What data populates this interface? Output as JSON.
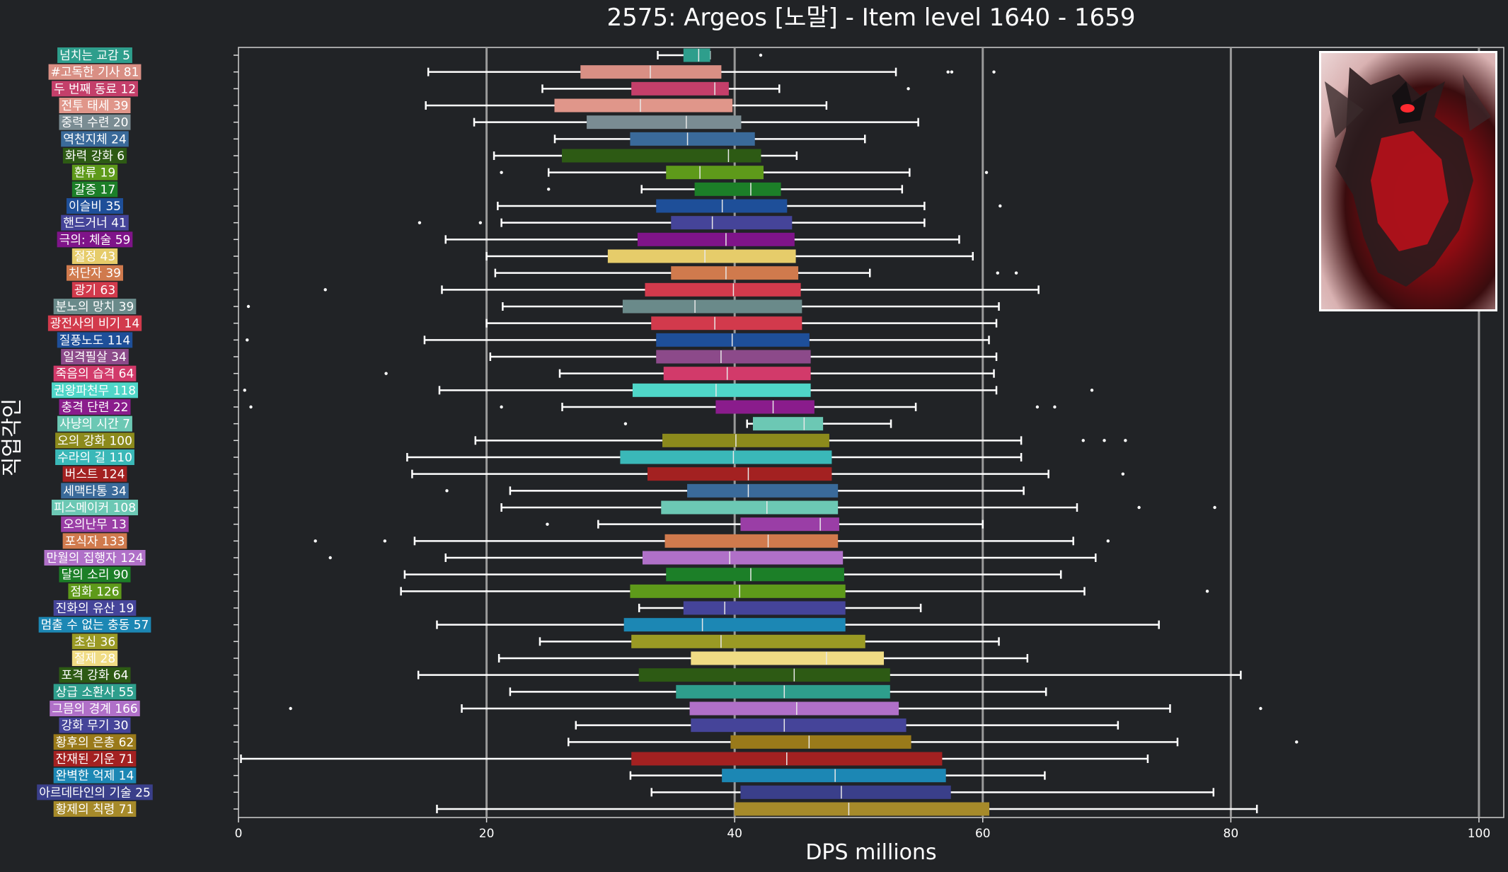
{
  "chart_data": {
    "type": "boxplot",
    "orientation": "horizontal",
    "title": "2575: Argeos [노말] - Item level 1640 - 1659",
    "xlabel": "DPS millions",
    "ylabel": "직업각인",
    "xlim": [
      0,
      102
    ],
    "xticks": [
      0,
      20,
      40,
      60,
      80,
      100
    ],
    "vgrid": [
      20,
      40,
      60,
      80,
      100
    ],
    "background": "#212326",
    "series": [
      {
        "label": "넘치는 교감 5",
        "color": "#2e9e8c",
        "whislo": 33.8,
        "q1": 35.9,
        "median": 37.1,
        "q3": 38.0,
        "whishi": 38.0,
        "fliers": [
          42.1
        ]
      },
      {
        "label": "#고독한 기사 81",
        "color": "#d98f84",
        "whislo": 15.3,
        "q1": 27.6,
        "median": 33.2,
        "q3": 38.9,
        "whishi": 53.0,
        "fliers": [
          57.2,
          57.5,
          60.9
        ]
      },
      {
        "label": "두 번째 동료 12",
        "color": "#c43f6a",
        "whislo": 24.5,
        "q1": 31.7,
        "median": 38.4,
        "q3": 39.5,
        "whishi": 43.6,
        "fliers": [
          54.0
        ]
      },
      {
        "label": "전투 태세 39",
        "color": "#e0968a",
        "whislo": 15.1,
        "q1": 25.5,
        "median": 32.4,
        "q3": 39.8,
        "whishi": 47.4,
        "fliers": []
      },
      {
        "label": "중력 수련 20",
        "color": "#7a8c93",
        "whislo": 19.0,
        "q1": 28.1,
        "median": 36.1,
        "q3": 40.5,
        "whishi": 54.8,
        "fliers": []
      },
      {
        "label": "역천지체 24",
        "color": "#3a6a9a",
        "whislo": 25.5,
        "q1": 31.6,
        "median": 36.2,
        "q3": 41.6,
        "whishi": 50.5,
        "fliers": []
      },
      {
        "label": "화력 강화 6",
        "color": "#2d5a14",
        "whislo": 20.6,
        "q1": 26.1,
        "median": 39.5,
        "q3": 42.1,
        "whishi": 45.0,
        "fliers": []
      },
      {
        "label": "환류 19",
        "color": "#5e9a1a",
        "whislo": 25.0,
        "q1": 34.5,
        "median": 37.2,
        "q3": 42.3,
        "whishi": 54.1,
        "fliers": [
          21.2,
          60.3
        ]
      },
      {
        "label": "갈증 17",
        "color": "#1c7f28",
        "whislo": 32.5,
        "q1": 36.8,
        "median": 41.3,
        "q3": 43.7,
        "whishi": 53.5,
        "fliers": [
          25.0
        ]
      },
      {
        "label": "이슬비 35",
        "color": "#1e4f99",
        "whislo": 20.9,
        "q1": 33.7,
        "median": 39.0,
        "q3": 44.2,
        "whishi": 55.3,
        "fliers": [
          61.4
        ]
      },
      {
        "label": "핸드거너 41",
        "color": "#454499",
        "whislo": 21.2,
        "q1": 34.9,
        "median": 38.2,
        "q3": 44.6,
        "whishi": 55.3,
        "fliers": [
          14.6,
          19.5
        ]
      },
      {
        "label": "극의: 체술 59",
        "color": "#7f1489",
        "whislo": 16.7,
        "q1": 32.2,
        "median": 39.3,
        "q3": 44.8,
        "whishi": 58.1,
        "fliers": []
      },
      {
        "label": "절정 43",
        "color": "#e6cc6a",
        "whislo": 20.0,
        "q1": 29.8,
        "median": 37.6,
        "q3": 44.9,
        "whishi": 59.2,
        "fliers": []
      },
      {
        "label": "처단자 39",
        "color": "#d07a4d",
        "whislo": 20.7,
        "q1": 34.9,
        "median": 39.3,
        "q3": 45.1,
        "whishi": 50.9,
        "fliers": [
          61.2,
          62.7
        ]
      },
      {
        "label": "광기 63",
        "color": "#d23a4c",
        "whislo": 16.4,
        "q1": 32.8,
        "median": 39.9,
        "q3": 45.3,
        "whishi": 64.5,
        "fliers": [
          7.0
        ]
      },
      {
        "label": "분노의 망치 39",
        "color": "#6a8a8a",
        "whislo": 21.3,
        "q1": 31.0,
        "median": 36.8,
        "q3": 45.4,
        "whishi": 61.3,
        "fliers": [
          0.8
        ]
      },
      {
        "label": "광전사의 비기 14",
        "color": "#d23a4c",
        "whislo": 20.0,
        "q1": 33.3,
        "median": 38.4,
        "q3": 45.4,
        "whishi": 61.1,
        "fliers": []
      },
      {
        "label": "질풍노도 114",
        "color": "#1e4f99",
        "whislo": 15.0,
        "q1": 33.7,
        "median": 39.8,
        "q3": 46.0,
        "whishi": 60.5,
        "fliers": [
          0.7
        ]
      },
      {
        "label": "일격필살 34",
        "color": "#8c4a8a",
        "whislo": 20.3,
        "q1": 33.7,
        "median": 38.9,
        "q3": 46.1,
        "whishi": 61.1,
        "fliers": []
      },
      {
        "label": "죽음의 습격 64",
        "color": "#d23a6a",
        "whislo": 25.9,
        "q1": 34.3,
        "median": 39.4,
        "q3": 46.1,
        "whishi": 60.9,
        "fliers": [
          11.9
        ]
      },
      {
        "label": "권왕파천무 118",
        "color": "#4fd6c8",
        "whislo": 16.2,
        "q1": 31.8,
        "median": 38.5,
        "q3": 46.1,
        "whishi": 61.1,
        "fliers": [
          0.5,
          68.8
        ]
      },
      {
        "label": "충격 단련 22",
        "color": "#8a1c8c",
        "whislo": 26.1,
        "q1": 38.5,
        "median": 43.1,
        "q3": 46.4,
        "whishi": 54.6,
        "fliers": [
          1.0,
          21.2,
          64.4,
          65.8
        ]
      },
      {
        "label": "사냥의 시간 7",
        "color": "#6cc8b4",
        "whislo": 41.0,
        "q1": 41.5,
        "median": 45.6,
        "q3": 47.1,
        "whishi": 52.6,
        "fliers": [
          31.2
        ]
      },
      {
        "label": "오의 강화 100",
        "color": "#8c8a1c",
        "whislo": 19.1,
        "q1": 34.2,
        "median": 40.1,
        "q3": 47.6,
        "whishi": 63.1,
        "fliers": [
          68.1,
          69.8,
          71.5
        ]
      },
      {
        "label": "수라의 길 110",
        "color": "#3ab8b8",
        "whislo": 13.6,
        "q1": 30.8,
        "median": 39.9,
        "q3": 47.8,
        "whishi": 63.1,
        "fliers": []
      },
      {
        "label": "버스트 124",
        "color": "#a32121",
        "whislo": 14.0,
        "q1": 33.0,
        "median": 41.1,
        "q3": 47.8,
        "whishi": 65.3,
        "fliers": [
          71.3
        ]
      },
      {
        "label": "세맥타통 34",
        "color": "#3a6a9a",
        "whislo": 21.9,
        "q1": 36.2,
        "median": 41.1,
        "q3": 48.3,
        "whishi": 63.3,
        "fliers": [
          16.8
        ]
      },
      {
        "label": "피스메이커 108",
        "color": "#6cc8b4",
        "whislo": 21.2,
        "q1": 34.1,
        "median": 42.6,
        "q3": 48.3,
        "whishi": 67.6,
        "fliers": [
          72.6,
          78.7
        ]
      },
      {
        "label": "오의난무 13",
        "color": "#9a3ea6",
        "whislo": 29.0,
        "q1": 40.5,
        "median": 46.9,
        "q3": 48.4,
        "whishi": 60.0,
        "fliers": [
          24.9
        ]
      },
      {
        "label": "포식자 133",
        "color": "#d07a4d",
        "whislo": 14.2,
        "q1": 34.4,
        "median": 42.7,
        "q3": 48.3,
        "whishi": 67.3,
        "fliers": [
          6.2,
          11.8,
          70.1
        ]
      },
      {
        "label": "만월의 집행자 124",
        "color": "#b070c8",
        "whislo": 16.7,
        "q1": 32.6,
        "median": 39.6,
        "q3": 48.7,
        "whishi": 69.1,
        "fliers": [
          7.4
        ]
      },
      {
        "label": "달의 소리 90",
        "color": "#1c7f28",
        "whislo": 13.4,
        "q1": 34.5,
        "median": 41.3,
        "q3": 48.8,
        "whishi": 66.3,
        "fliers": []
      },
      {
        "label": "점화 126",
        "color": "#5e9a1a",
        "whislo": 13.1,
        "q1": 31.6,
        "median": 40.4,
        "q3": 48.9,
        "whishi": 68.2,
        "fliers": [
          78.1
        ]
      },
      {
        "label": "진화의 유산 19",
        "color": "#454499",
        "whislo": 32.3,
        "q1": 35.9,
        "median": 39.2,
        "q3": 48.9,
        "whishi": 55.0,
        "fliers": []
      },
      {
        "label": "멈출 수 없는 충동 57",
        "color": "#1c87b4",
        "whislo": 16.0,
        "q1": 31.1,
        "median": 37.4,
        "q3": 48.9,
        "whishi": 74.2,
        "fliers": []
      },
      {
        "label": "초심 36",
        "color": "#9a9a24",
        "whislo": 24.3,
        "q1": 31.7,
        "median": 38.9,
        "q3": 50.5,
        "whishi": 61.3,
        "fliers": []
      },
      {
        "label": "절제 28",
        "color": "#f0dc84",
        "whislo": 21.0,
        "q1": 36.5,
        "median": 47.4,
        "q3": 52.0,
        "whishi": 63.6,
        "fliers": []
      },
      {
        "label": "포격 강화 64",
        "color": "#2d5a14",
        "whislo": 14.5,
        "q1": 32.3,
        "median": 44.8,
        "q3": 52.5,
        "whishi": 80.8,
        "fliers": []
      },
      {
        "label": "상급 소환사 55",
        "color": "#2e9e8c",
        "whislo": 21.9,
        "q1": 35.3,
        "median": 44.0,
        "q3": 52.5,
        "whishi": 65.1,
        "fliers": []
      },
      {
        "label": "그믐의 경계 166",
        "color": "#b070c8",
        "whislo": 18.0,
        "q1": 36.4,
        "median": 45.0,
        "q3": 53.2,
        "whishi": 75.1,
        "fliers": [
          4.2,
          82.4
        ]
      },
      {
        "label": "강화 무기 30",
        "color": "#454499",
        "whislo": 27.2,
        "q1": 36.5,
        "median": 44.0,
        "q3": 53.8,
        "whishi": 70.9,
        "fliers": []
      },
      {
        "label": "황후의 은총 62",
        "color": "#9a7a1a",
        "whislo": 26.6,
        "q1": 39.7,
        "median": 46.0,
        "q3": 54.2,
        "whishi": 75.7,
        "fliers": [
          85.3
        ]
      },
      {
        "label": "잔재된 기운 71",
        "color": "#a32121",
        "whislo": 0.2,
        "q1": 31.7,
        "median": 44.2,
        "q3": 56.7,
        "whishi": 73.3,
        "fliers": []
      },
      {
        "label": "완벽한 억제 14",
        "color": "#1c87b4",
        "whislo": 31.6,
        "q1": 39.0,
        "median": 48.1,
        "q3": 57.0,
        "whishi": 65.0,
        "fliers": []
      },
      {
        "label": "아르데타인의 기술 25",
        "color": "#3a3f8a",
        "whislo": 33.3,
        "q1": 40.5,
        "median": 48.6,
        "q3": 57.4,
        "whishi": 78.6,
        "fliers": []
      },
      {
        "label": "황제의 칙령 71",
        "color": "#a68a2a",
        "whislo": 16.0,
        "q1": 40.0,
        "median": 49.2,
        "q3": 60.5,
        "whishi": 82.1,
        "fliers": []
      }
    ]
  }
}
